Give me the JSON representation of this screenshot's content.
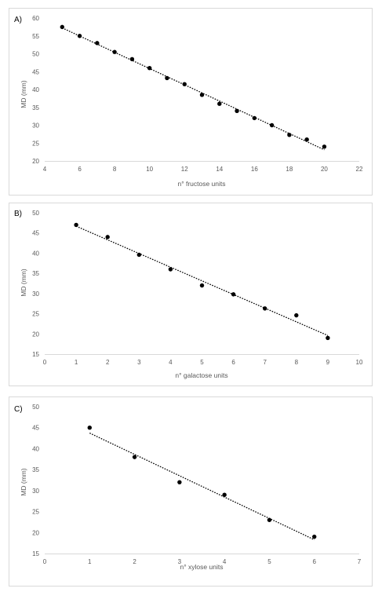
{
  "colors": {
    "marker": "#000000",
    "trendline": "#000000",
    "axis_text": "#595959",
    "frame": "#d9d9d9"
  },
  "chart_data": [
    {
      "panel_label": "A)",
      "type": "scatter",
      "xlabel": "n° fructose units",
      "ylabel": "MD (mm)",
      "xlim": [
        4,
        22
      ],
      "ylim": [
        20,
        60
      ],
      "xticks": [
        4,
        6,
        8,
        10,
        12,
        14,
        16,
        18,
        20,
        22
      ],
      "yticks": [
        20,
        25,
        30,
        35,
        40,
        45,
        50,
        55,
        60
      ],
      "grid": false,
      "trendline": "linear dotted",
      "series": [
        {
          "x": [
            5,
            6,
            7,
            8,
            9,
            10,
            11,
            12,
            13,
            14,
            15,
            16,
            17,
            18,
            19,
            20
          ],
          "y": [
            57.5,
            55,
            53,
            50.5,
            48.5,
            46,
            43.2,
            41.5,
            38.5,
            36,
            34,
            32,
            30,
            27.3,
            26,
            24
          ]
        }
      ]
    },
    {
      "panel_label": "B)",
      "type": "scatter",
      "xlabel": "n° galactose units",
      "ylabel": "MD (mm)",
      "xlim": [
        0,
        10
      ],
      "ylim": [
        15,
        50
      ],
      "xticks": [
        0,
        1,
        2,
        3,
        4,
        5,
        6,
        7,
        8,
        9,
        10
      ],
      "yticks": [
        15,
        20,
        25,
        30,
        35,
        40,
        45,
        50
      ],
      "grid": false,
      "trendline": "linear dotted",
      "series": [
        {
          "x": [
            1,
            2,
            3,
            4,
            5,
            6,
            7,
            8,
            9
          ],
          "y": [
            47,
            44,
            39.6,
            36,
            32,
            29.8,
            26.3,
            24.6,
            19
          ]
        }
      ]
    },
    {
      "panel_label": "C)",
      "type": "scatter",
      "xlabel": "n° xylose units",
      "ylabel": "MD (mm)",
      "xlim": [
        0,
        7
      ],
      "ylim": [
        15,
        50
      ],
      "xticks": [
        0,
        1,
        2,
        3,
        4,
        5,
        6,
        7
      ],
      "yticks": [
        15,
        20,
        25,
        30,
        35,
        40,
        45,
        50
      ],
      "grid": false,
      "trendline": "linear dotted",
      "series": [
        {
          "x": [
            1,
            2,
            3,
            4,
            5,
            6
          ],
          "y": [
            45,
            38,
            32,
            29,
            23,
            19
          ]
        }
      ]
    }
  ]
}
